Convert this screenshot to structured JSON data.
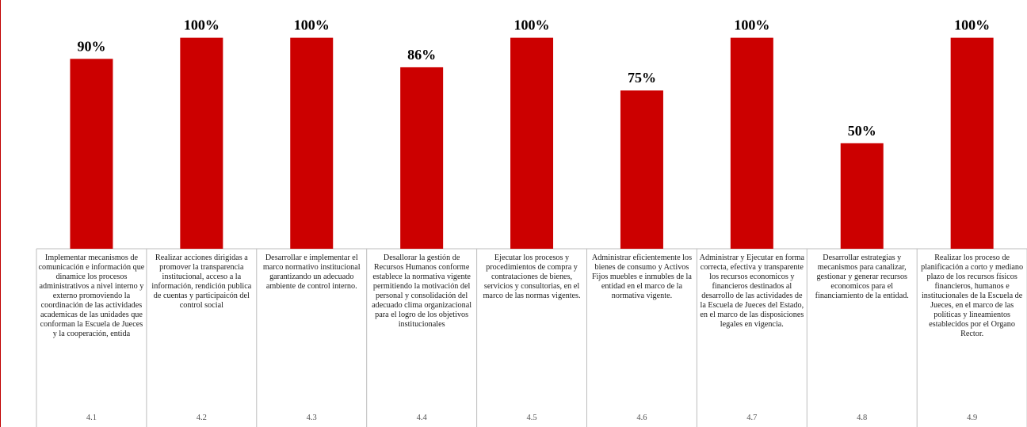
{
  "chart_data": {
    "type": "bar",
    "ylim": [
      0,
      110
    ],
    "bar_color": "#cc0000",
    "border_color": "#c00000",
    "categories": [
      "4.1",
      "4.2",
      "4.3",
      "4.4",
      "4.5",
      "4.6",
      "4.7",
      "4.8",
      "4.9"
    ],
    "values": [
      90,
      100,
      100,
      86,
      100,
      75,
      100,
      50,
      100
    ],
    "data_labels": [
      "90%",
      "100%",
      "100%",
      "86%",
      "100%",
      "75%",
      "100%",
      "50%",
      "100%"
    ],
    "descriptions": [
      "Implementar mecanismos de comunicación e información que dinamice los procesos administrativos a nivel interno y externo promoviendo la coordinación de las actividades academicas de las unidades que conforman la Escuela de Jueces y la cooperación, entida",
      "Realizar acciones dirigidas a promover la transparencia institucional, acceso a la información, rendición publica de cuentas y participaicón del control social",
      "Desarrollar e implementar el marco normativo institucional garantizando un adecuado ambiente de control interno.",
      "Desallorar la gestión de Recursos Humanos conforme establece la normativa vigente permitiendo la motivación del personal y consolidación del adecuado clima organizacional para el logro de los objetivos institucionales",
      "Ejecutar los procesos y procedimientos de compra y contrataciones de bienes, servicios y consultorias, en el marco de las normas vigentes.",
      "Administrar eficientemente los bienes de consumo y Activos Fijos muebles e inmubles de la entidad en el marco de la normativa vigente.",
      "Administrar y Ejecutar en forma correcta, efectiva y transparente los recursos economicos y financieros destinados al desarrollo de las actividades de la Escuela de Jueces del Estado, en el marco de las disposiciones legales en vigencia.",
      "Desarrollar estrategias y mecanismos para canalizar, gestionar y generar recursos economicos para el financiamiento de la entidad.",
      "Realizar los proceso de planificación a corto y mediano plazo de los recursos físicos financieros, humanos e institucionales de la Escuela de Jueces, en el marco de las políticas y lineamientos establecidos por el Organo Rector."
    ]
  }
}
